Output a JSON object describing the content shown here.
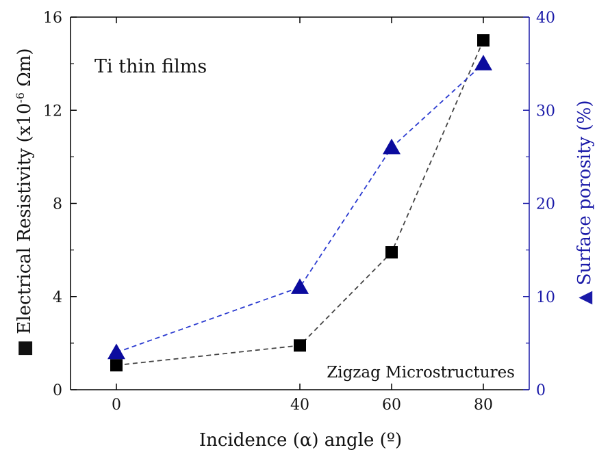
{
  "chart_data": {
    "type": "scatter",
    "x": [
      0,
      40,
      60,
      80
    ],
    "xlabel": "Incidence (α) angle (º)",
    "xlim": [
      -10,
      90
    ],
    "xticks": [
      "0",
      "40",
      "60",
      "80"
    ],
    "ylabel_left": "Electrical Resistivity (x10",
    "ylabel_left_exp": "-6",
    "ylabel_left_unit": " Ωm)",
    "ylabel_left_marker": "■",
    "ylim_left": [
      0,
      16
    ],
    "yticks_left": [
      "0",
      "4",
      "8",
      "12",
      "16"
    ],
    "ylabel_right": "Surface porosity (%)",
    "ylabel_right_marker": "▲",
    "ylim_right": [
      0,
      40
    ],
    "yticks_right": [
      "0",
      "10",
      "20",
      "30",
      "40"
    ],
    "series": [
      {
        "axis": "left",
        "marker": "square",
        "values": [
          1.05,
          1.9,
          5.9,
          15.0
        ],
        "color": "#000000",
        "line_color": "#444444",
        "line_style": "dashed"
      },
      {
        "axis": "right",
        "marker": "triangle",
        "values": [
          4.0,
          11.0,
          26.0,
          35.0
        ],
        "color": "#0b0b9e",
        "line_color": "#2a3ad0",
        "line_style": "dashed"
      }
    ],
    "annotations": [
      "Ti thin films",
      "Zigzag Microstructures"
    ],
    "right_axis_color": "#1a1aa8",
    "grid": false
  }
}
